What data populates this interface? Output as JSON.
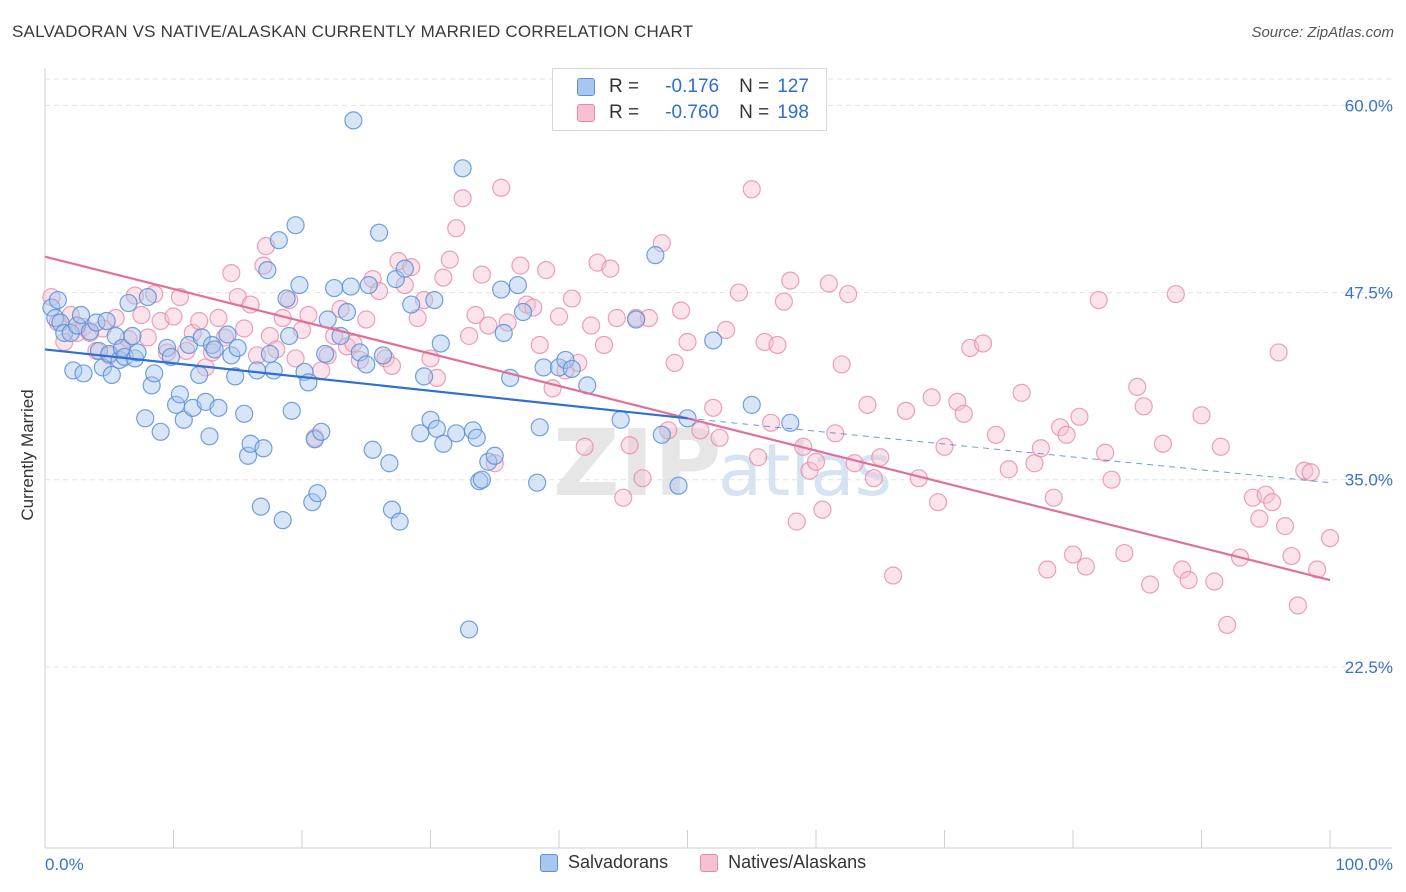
{
  "title": "SALVADORAN VS NATIVE/ALASKAN CURRENTLY MARRIED CORRELATION CHART",
  "source": "Source: ZipAtlas.com",
  "colors": {
    "blue": "#5b8fd9",
    "blue_fill": "#a9c6ee",
    "blue_line": "#2f6fd0",
    "pink": "#e78aaa",
    "pink_fill": "#f5c1d2",
    "pink_line": "#e0709a",
    "tick_text": "#3a72c8",
    "grid": "#e2e2e2"
  },
  "legend": {
    "rows": [
      {
        "r_label": "R =",
        "r_value": "-0.176",
        "n_label": "N =",
        "n_value": "127"
      },
      {
        "r_label": "R =",
        "r_value": "-0.760",
        "n_label": "N =",
        "n_value": "198"
      }
    ]
  },
  "bottom_legend": [
    "Salvadorans",
    "Natives/Alaskans"
  ],
  "watermark": {
    "zip": "ZIP",
    "atlas": "atlas"
  },
  "chart_data": {
    "type": "scatter",
    "ylabel": "Currently Married",
    "xlim": [
      0,
      100
    ],
    "ylim": [
      10.4,
      62.5
    ],
    "x_tick_labels": [
      {
        "v": 0,
        "t": "0.0%"
      },
      {
        "v": 100,
        "t": "100.0%"
      }
    ],
    "y_ticks": [
      {
        "v": 60,
        "t": "60.0%"
      },
      {
        "v": 47.5,
        "t": "47.5%"
      },
      {
        "v": 35,
        "t": "35.0%"
      },
      {
        "v": 22.5,
        "t": "22.5%"
      }
    ],
    "grid": true,
    "series": [
      {
        "name": "Salvadorans",
        "trend": {
          "x": [
            0,
            50
          ],
          "y": [
            43.7,
            39.1
          ]
        },
        "trend_ext": {
          "x": [
            50,
            100
          ],
          "y": [
            39.1,
            34.8
          ]
        },
        "points": [
          [
            0.5,
            46.5
          ],
          [
            0.8,
            45.8
          ],
          [
            1.0,
            47.0
          ],
          [
            1.2,
            45.5
          ],
          [
            1.5,
            44.8
          ],
          [
            2.0,
            44.8
          ],
          [
            2.2,
            42.3
          ],
          [
            2.5,
            45.3
          ],
          [
            2.8,
            46.0
          ],
          [
            3.0,
            42.1
          ],
          [
            3.5,
            44.9
          ],
          [
            4.0,
            45.5
          ],
          [
            4.2,
            43.6
          ],
          [
            4.5,
            42.5
          ],
          [
            4.8,
            45.6
          ],
          [
            5.0,
            43.4
          ],
          [
            5.2,
            42.0
          ],
          [
            5.5,
            44.6
          ],
          [
            5.8,
            43.0
          ],
          [
            6.0,
            43.8
          ],
          [
            6.2,
            43.2
          ],
          [
            6.5,
            46.8
          ],
          [
            7.0,
            43.1
          ],
          [
            6.8,
            44.6
          ],
          [
            7.2,
            43.5
          ],
          [
            7.8,
            39.1
          ],
          [
            8.0,
            47.2
          ],
          [
            8.3,
            41.3
          ],
          [
            8.5,
            42.1
          ],
          [
            9.0,
            38.2
          ],
          [
            9.5,
            43.8
          ],
          [
            9.8,
            43.2
          ],
          [
            10.2,
            40.0
          ],
          [
            10.5,
            40.7
          ],
          [
            10.8,
            39.0
          ],
          [
            11.2,
            44.0
          ],
          [
            11.5,
            39.8
          ],
          [
            12.0,
            42.0
          ],
          [
            12.2,
            44.5
          ],
          [
            12.5,
            40.2
          ],
          [
            12.8,
            37.9
          ],
          [
            13.0,
            44.0
          ],
          [
            13.2,
            43.7
          ],
          [
            13.5,
            39.8
          ],
          [
            14.2,
            44.7
          ],
          [
            14.5,
            43.3
          ],
          [
            14.8,
            41.9
          ],
          [
            15.0,
            43.8
          ],
          [
            15.5,
            39.4
          ],
          [
            15.8,
            36.6
          ],
          [
            16.0,
            37.4
          ],
          [
            16.5,
            42.3
          ],
          [
            16.8,
            33.2
          ],
          [
            17.0,
            37.1
          ],
          [
            17.3,
            49.0
          ],
          [
            17.5,
            43.4
          ],
          [
            17.8,
            42.3
          ],
          [
            18.2,
            51.0
          ],
          [
            18.5,
            32.3
          ],
          [
            18.8,
            47.1
          ],
          [
            19.0,
            44.6
          ],
          [
            19.2,
            39.6
          ],
          [
            19.5,
            52.0
          ],
          [
            19.8,
            48.0
          ],
          [
            20.2,
            42.2
          ],
          [
            20.5,
            41.5
          ],
          [
            20.8,
            33.5
          ],
          [
            21.0,
            37.7
          ],
          [
            21.2,
            34.1
          ],
          [
            21.5,
            38.2
          ],
          [
            21.8,
            43.4
          ],
          [
            22.0,
            45.7
          ],
          [
            22.5,
            47.8
          ],
          [
            23.0,
            44.6
          ],
          [
            23.5,
            46.2
          ],
          [
            23.8,
            47.9
          ],
          [
            24.0,
            59.0
          ],
          [
            24.5,
            43.5
          ],
          [
            25.0,
            42.7
          ],
          [
            25.2,
            48.0
          ],
          [
            25.5,
            37.0
          ],
          [
            26.0,
            51.5
          ],
          [
            26.3,
            43.3
          ],
          [
            26.8,
            36.1
          ],
          [
            27.0,
            33.0
          ],
          [
            27.3,
            48.4
          ],
          [
            27.6,
            32.2
          ],
          [
            28.0,
            49.1
          ],
          [
            28.5,
            46.7
          ],
          [
            29.2,
            38.1
          ],
          [
            29.5,
            41.9
          ],
          [
            30.0,
            39.0
          ],
          [
            30.3,
            47.0
          ],
          [
            30.5,
            38.4
          ],
          [
            30.8,
            44.1
          ],
          [
            31.0,
            37.4
          ],
          [
            32.0,
            38.1
          ],
          [
            32.5,
            55.8
          ],
          [
            33.0,
            25.0
          ],
          [
            33.3,
            38.3
          ],
          [
            33.6,
            37.8
          ],
          [
            33.8,
            34.9
          ],
          [
            34.0,
            35.0
          ],
          [
            34.5,
            36.2
          ],
          [
            35.0,
            36.6
          ],
          [
            35.5,
            47.7
          ],
          [
            35.7,
            44.8
          ],
          [
            36.2,
            41.8
          ],
          [
            36.8,
            48.0
          ],
          [
            37.2,
            46.2
          ],
          [
            38.3,
            34.8
          ],
          [
            38.5,
            38.5
          ],
          [
            38.8,
            42.5
          ],
          [
            40.0,
            42.5
          ],
          [
            40.5,
            43.0
          ],
          [
            41.0,
            42.4
          ],
          [
            42.2,
            41.3
          ],
          [
            44.8,
            39.0
          ],
          [
            46.0,
            45.7
          ],
          [
            47.5,
            50.0
          ],
          [
            48.0,
            38.0
          ],
          [
            49.3,
            34.6
          ],
          [
            50.0,
            39.1
          ],
          [
            52.0,
            44.3
          ],
          [
            55.0,
            40.0
          ],
          [
            58.0,
            38.8
          ]
        ]
      },
      {
        "name": "Natives/Alaskans",
        "trend": {
          "x": [
            0,
            100
          ],
          "y": [
            49.9,
            28.3
          ]
        },
        "points": [
          [
            0.5,
            47.2
          ],
          [
            1.0,
            45.5
          ],
          [
            1.5,
            44.2
          ],
          [
            2.0,
            46.0
          ],
          [
            2.5,
            44.8
          ],
          [
            3.0,
            45.2
          ],
          [
            3.5,
            44.8
          ],
          [
            4.0,
            43.6
          ],
          [
            4.5,
            45.1
          ],
          [
            5.0,
            43.3
          ],
          [
            5.5,
            45.8
          ],
          [
            6.0,
            43.7
          ],
          [
            6.5,
            44.4
          ],
          [
            7.0,
            47.3
          ],
          [
            7.5,
            46.0
          ],
          [
            8.0,
            44.5
          ],
          [
            8.5,
            47.4
          ],
          [
            9.0,
            45.6
          ],
          [
            9.5,
            43.5
          ],
          [
            10.0,
            45.9
          ],
          [
            10.5,
            47.2
          ],
          [
            11.0,
            43.6
          ],
          [
            11.5,
            44.8
          ],
          [
            12.0,
            45.6
          ],
          [
            12.5,
            42.5
          ],
          [
            13.0,
            43.5
          ],
          [
            13.5,
            45.8
          ],
          [
            14.0,
            44.5
          ],
          [
            14.5,
            48.8
          ],
          [
            15.0,
            47.2
          ],
          [
            15.5,
            45.1
          ],
          [
            16.0,
            46.7
          ],
          [
            16.5,
            43.3
          ],
          [
            17.0,
            49.3
          ],
          [
            17.2,
            50.6
          ],
          [
            17.5,
            44.6
          ],
          [
            18.0,
            43.7
          ],
          [
            18.5,
            45.8
          ],
          [
            19.0,
            47.0
          ],
          [
            19.5,
            43.1
          ],
          [
            20.0,
            45.0
          ],
          [
            20.5,
            46.0
          ],
          [
            21.0,
            37.8
          ],
          [
            21.5,
            42.3
          ],
          [
            22.0,
            43.3
          ],
          [
            22.5,
            44.6
          ],
          [
            23.0,
            46.4
          ],
          [
            23.5,
            43.9
          ],
          [
            24.0,
            44.1
          ],
          [
            24.5,
            43.0
          ],
          [
            25.0,
            45.7
          ],
          [
            25.5,
            48.4
          ],
          [
            26.0,
            47.6
          ],
          [
            26.5,
            43.1
          ],
          [
            27.0,
            42.6
          ],
          [
            27.5,
            49.6
          ],
          [
            28.0,
            48.0
          ],
          [
            28.5,
            49.2
          ],
          [
            29.0,
            45.8
          ],
          [
            29.5,
            47.0
          ],
          [
            30.0,
            43.1
          ],
          [
            30.5,
            41.8
          ],
          [
            31.0,
            48.5
          ],
          [
            31.5,
            49.7
          ],
          [
            32.0,
            51.8
          ],
          [
            32.5,
            53.8
          ],
          [
            33.0,
            44.6
          ],
          [
            33.5,
            46.0
          ],
          [
            34.0,
            48.7
          ],
          [
            34.5,
            45.3
          ],
          [
            35.0,
            36.1
          ],
          [
            35.5,
            54.5
          ],
          [
            36.0,
            45.5
          ],
          [
            37.0,
            49.3
          ],
          [
            37.5,
            46.7
          ],
          [
            38.0,
            46.5
          ],
          [
            38.5,
            44.0
          ],
          [
            39.0,
            49.0
          ],
          [
            39.5,
            41.1
          ],
          [
            40.0,
            45.9
          ],
          [
            40.5,
            42.3
          ],
          [
            41.0,
            47.1
          ],
          [
            41.5,
            42.8
          ],
          [
            42.0,
            37.2
          ],
          [
            42.5,
            45.3
          ],
          [
            43.0,
            49.5
          ],
          [
            43.5,
            44.0
          ],
          [
            44.0,
            49.1
          ],
          [
            44.5,
            45.8
          ],
          [
            45.0,
            33.8
          ],
          [
            45.5,
            37.3
          ],
          [
            46.0,
            45.8
          ],
          [
            46.5,
            35.1
          ],
          [
            47.0,
            45.8
          ],
          [
            48.0,
            50.8
          ],
          [
            48.5,
            38.3
          ],
          [
            49.0,
            42.8
          ],
          [
            49.5,
            46.3
          ],
          [
            50.0,
            44.2
          ],
          [
            51.0,
            38.3
          ],
          [
            52.0,
            39.8
          ],
          [
            52.5,
            37.8
          ],
          [
            53.0,
            45.0
          ],
          [
            54.0,
            47.5
          ],
          [
            55.0,
            54.4
          ],
          [
            55.5,
            36.5
          ],
          [
            56.0,
            44.2
          ],
          [
            56.5,
            38.8
          ],
          [
            57.0,
            44.0
          ],
          [
            57.5,
            46.9
          ],
          [
            58.0,
            48.3
          ],
          [
            58.5,
            32.2
          ],
          [
            59.0,
            37.2
          ],
          [
            59.5,
            35.6
          ],
          [
            60.0,
            36.2
          ],
          [
            60.5,
            33.0
          ],
          [
            61.0,
            48.1
          ],
          [
            61.5,
            38.1
          ],
          [
            62.0,
            42.7
          ],
          [
            62.5,
            47.4
          ],
          [
            63.0,
            36.1
          ],
          [
            64.0,
            40.0
          ],
          [
            64.5,
            35.1
          ],
          [
            65.0,
            36.5
          ],
          [
            66.0,
            28.6
          ],
          [
            67.0,
            39.6
          ],
          [
            68.0,
            35.1
          ],
          [
            69.0,
            40.5
          ],
          [
            69.5,
            33.5
          ],
          [
            70.0,
            37.2
          ],
          [
            71.0,
            40.2
          ],
          [
            71.5,
            39.4
          ],
          [
            72.0,
            43.8
          ],
          [
            73.0,
            44.1
          ],
          [
            74.0,
            38.0
          ],
          [
            75.0,
            35.7
          ],
          [
            76.0,
            40.8
          ],
          [
            77.0,
            36.1
          ],
          [
            77.5,
            37.1
          ],
          [
            78.0,
            29.0
          ],
          [
            78.5,
            33.8
          ],
          [
            79.0,
            38.5
          ],
          [
            79.5,
            38.0
          ],
          [
            80.0,
            30.0
          ],
          [
            80.5,
            39.2
          ],
          [
            81.0,
            29.2
          ],
          [
            82.0,
            47.0
          ],
          [
            82.5,
            36.8
          ],
          [
            83.0,
            35.0
          ],
          [
            84.0,
            30.1
          ],
          [
            85.0,
            41.2
          ],
          [
            85.5,
            39.9
          ],
          [
            86.0,
            28.0
          ],
          [
            87.0,
            37.4
          ],
          [
            88.0,
            47.4
          ],
          [
            88.5,
            29.0
          ],
          [
            89.0,
            28.3
          ],
          [
            90.0,
            39.3
          ],
          [
            91.0,
            28.2
          ],
          [
            91.5,
            37.2
          ],
          [
            92.0,
            25.3
          ],
          [
            93.0,
            29.8
          ],
          [
            94.0,
            33.8
          ],
          [
            94.5,
            32.4
          ],
          [
            95.0,
            34.0
          ],
          [
            95.5,
            33.5
          ],
          [
            96.0,
            43.5
          ],
          [
            96.5,
            31.9
          ],
          [
            97.0,
            29.9
          ],
          [
            97.5,
            26.6
          ],
          [
            98.0,
            35.6
          ],
          [
            98.5,
            35.5
          ],
          [
            99.0,
            29.0
          ],
          [
            100.0,
            31.1
          ]
        ]
      }
    ]
  }
}
